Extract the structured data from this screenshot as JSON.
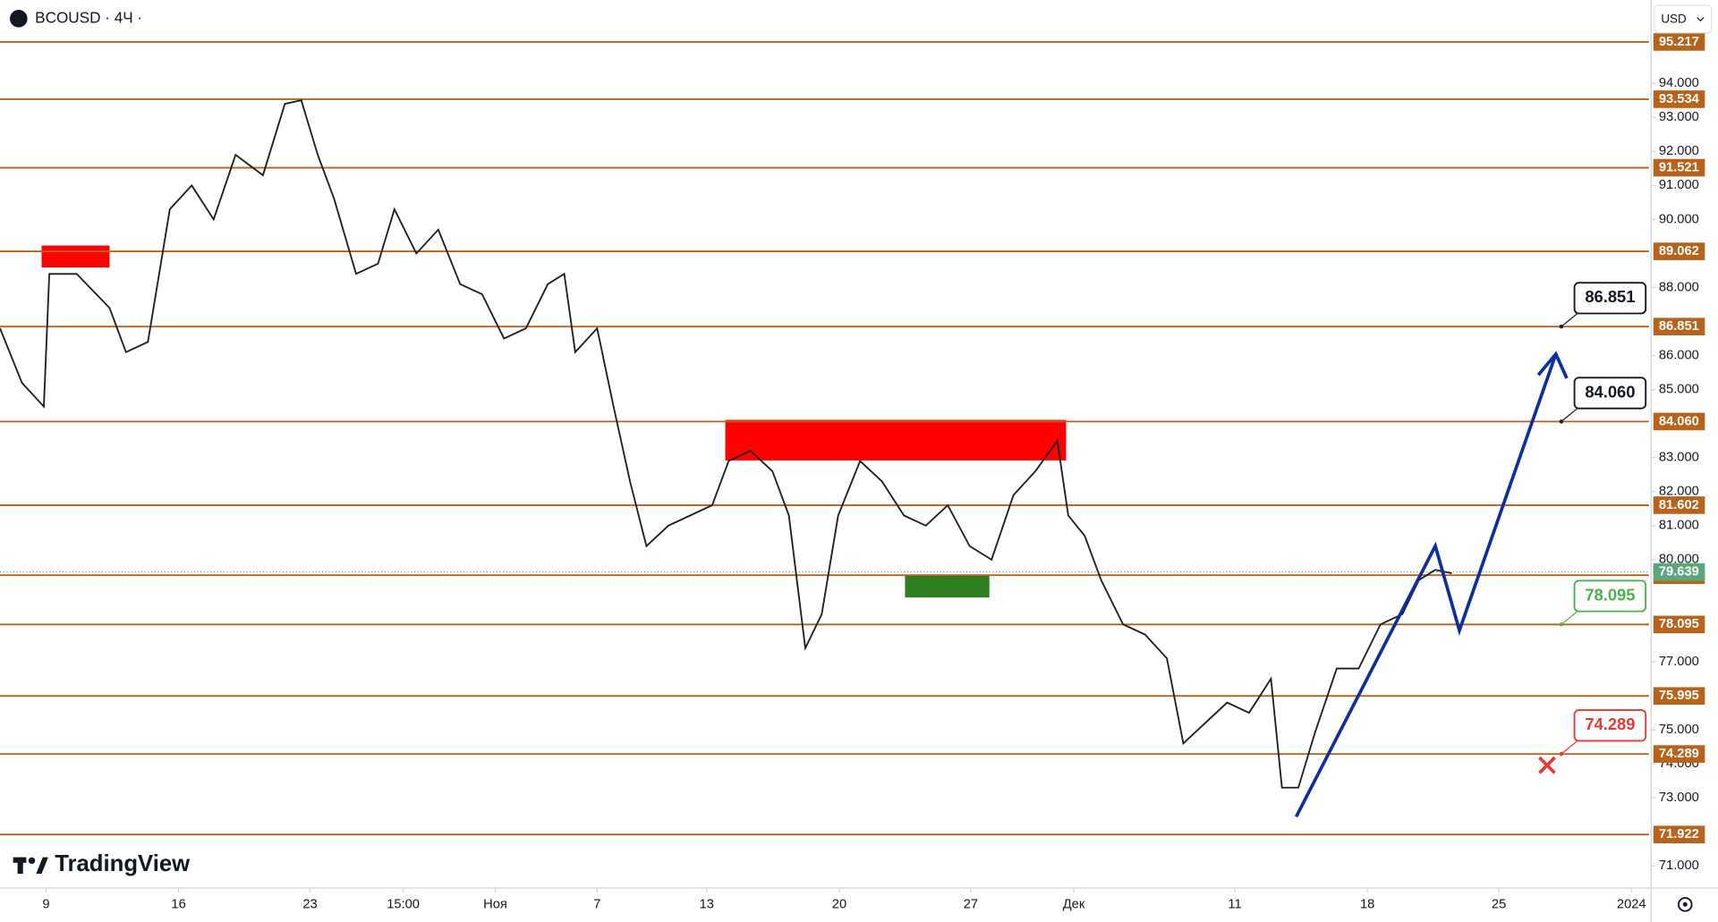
{
  "chart_data": {
    "type": "line",
    "title": "BCOUSD · 4Ч ·",
    "currency": "USD",
    "brand": "TradingView",
    "color": "#1e1e1e",
    "xlim": [
      0,
      1505
    ],
    "ylim": [
      70.35,
      96.45
    ],
    "x": [
      0,
      20,
      40,
      45,
      70,
      100,
      115,
      135,
      155,
      175,
      195,
      215,
      240,
      260,
      275,
      290,
      305,
      325,
      345,
      360,
      380,
      400,
      420,
      440,
      460,
      480,
      500,
      515,
      525,
      545,
      560,
      575,
      590,
      610,
      630,
      650,
      665,
      685,
      705,
      720,
      735,
      750,
      765,
      785,
      805,
      825,
      845,
      865,
      885,
      905,
      925,
      945,
      965,
      975,
      990,
      1005,
      1025,
      1045,
      1065,
      1080,
      1100,
      1120,
      1140,
      1160,
      1170,
      1185,
      1200,
      1220,
      1240,
      1260,
      1280,
      1295,
      1310,
      1325
    ],
    "values": [
      86.8,
      85.2,
      84.5,
      88.4,
      88.4,
      87.4,
      86.1,
      86.4,
      90.3,
      91.0,
      90.0,
      91.9,
      91.3,
      93.4,
      93.5,
      91.9,
      90.6,
      88.4,
      88.7,
      90.3,
      89.0,
      89.7,
      88.1,
      87.8,
      86.5,
      86.8,
      88.1,
      88.4,
      86.1,
      86.8,
      84.5,
      82.3,
      80.4,
      81.0,
      81.3,
      81.6,
      82.9,
      83.2,
      82.6,
      81.3,
      77.4,
      78.4,
      81.3,
      82.9,
      82.3,
      81.3,
      81.0,
      81.6,
      80.4,
      80.0,
      81.9,
      82.6,
      83.5,
      81.3,
      80.7,
      79.4,
      78.1,
      77.8,
      77.1,
      74.6,
      75.2,
      75.8,
      75.5,
      76.5,
      73.3,
      73.3,
      74.9,
      76.8,
      76.8,
      78.1,
      78.4,
      79.4,
      79.7,
      79.6
    ],
    "xticks": [
      {
        "value": 42,
        "label": "9"
      },
      {
        "value": 163,
        "label": "16"
      },
      {
        "value": 283,
        "label": "23"
      },
      {
        "value": 368,
        "label": "15:00"
      },
      {
        "value": 452,
        "label": "Ноя"
      },
      {
        "value": 545,
        "label": "7"
      },
      {
        "value": 645,
        "label": "13"
      },
      {
        "value": 766,
        "label": "20"
      },
      {
        "value": 886,
        "label": "27"
      },
      {
        "value": 980,
        "label": "Дек"
      },
      {
        "value": 1127,
        "label": "11"
      },
      {
        "value": 1248,
        "label": "18"
      },
      {
        "value": 1368,
        "label": "25"
      },
      {
        "value": 1489,
        "label": "2024"
      }
    ],
    "yticks": [
      {
        "value": 94,
        "label": "94.000"
      },
      {
        "value": 93,
        "label": "93.000"
      },
      {
        "value": 92,
        "label": "92.000"
      },
      {
        "value": 91,
        "label": "91.000"
      },
      {
        "value": 90,
        "label": "90.000"
      },
      {
        "value": 88,
        "label": "88.000"
      },
      {
        "value": 86,
        "label": "86.000"
      },
      {
        "value": 85,
        "label": "85.000"
      },
      {
        "value": 83,
        "label": "83.000"
      },
      {
        "value": 82,
        "label": "82.000"
      },
      {
        "value": 81,
        "label": "81.000"
      },
      {
        "value": 80,
        "label": "80.000"
      },
      {
        "value": 77,
        "label": "77.000"
      },
      {
        "value": 75,
        "label": "75.000"
      },
      {
        "value": 74,
        "label": "74.000"
      },
      {
        "value": 73,
        "label": "73.000"
      },
      {
        "value": 71,
        "label": "71.000"
      }
    ],
    "level_color": "#b8621b",
    "levels": [
      95.217,
      93.534,
      91.521,
      {
        "value": 89.062,
        "label": "89.062"
      },
      86.851,
      {
        "value": 84.06,
        "label": "84.060"
      },
      {
        "value": 81.602,
        "label": "81.602"
      },
      79.544,
      78.095,
      75.995,
      74.289,
      71.922
    ],
    "last_price": {
      "value": 79.639,
      "label": "79.639",
      "color": "#5aa77c"
    },
    "callouts": [
      {
        "value": 86.851,
        "color": "#131722"
      },
      {
        "value": {
          "value": 84.06,
          "label": "84.060"
        },
        "color": "#131722"
      },
      {
        "value": 78.095,
        "color": "#4caf50"
      },
      {
        "value": 74.289,
        "color": "#e53935"
      }
    ]
  }
}
